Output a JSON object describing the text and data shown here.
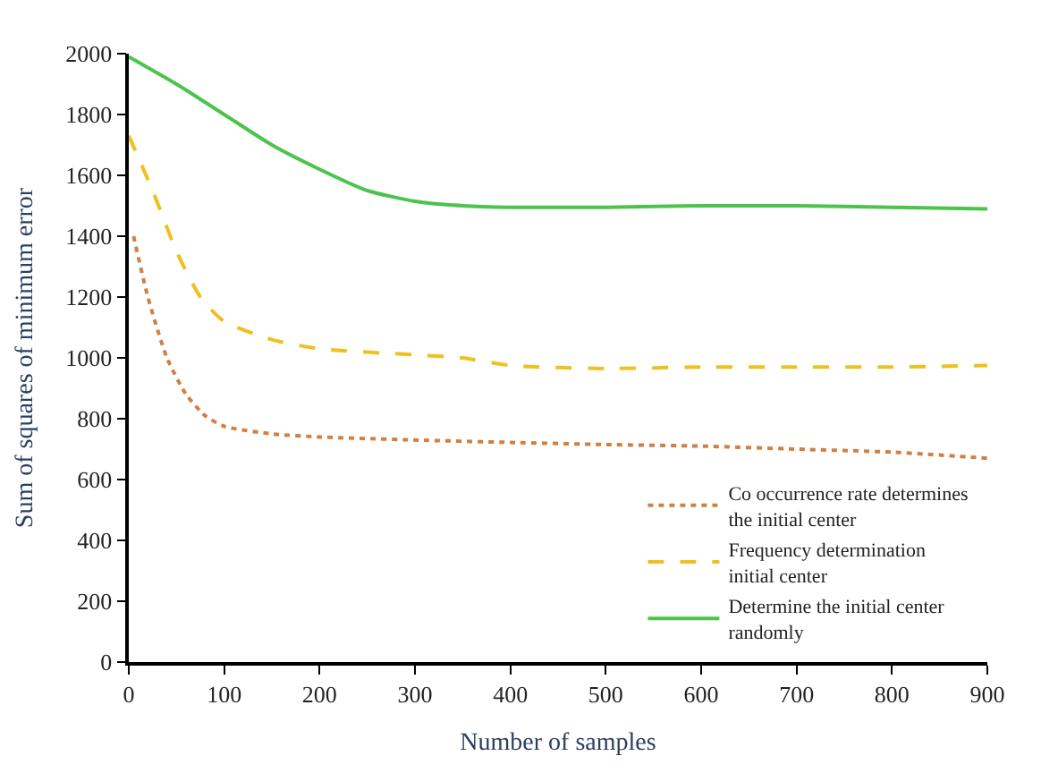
{
  "chart_data": {
    "type": "line",
    "xlabel": "Number of samples",
    "ylabel": "Sum of squares of minimum error",
    "xlim": [
      0,
      900
    ],
    "xticks": [
      0,
      100,
      200,
      300,
      400,
      500,
      600,
      700,
      800,
      900
    ],
    "ylim": [
      0,
      2000
    ],
    "yticks": [
      0,
      200,
      400,
      600,
      800,
      1000,
      1200,
      1400,
      1600,
      1800,
      2000
    ],
    "legend": "bottom right",
    "marker": "none",
    "series": [
      {
        "name": "Co occurrence rate determines the initial center",
        "color": "#d08040",
        "line_style": "dotted",
        "x": [
          5,
          20,
          40,
          60,
          80,
          100,
          150,
          200,
          300,
          400,
          500,
          600,
          700,
          800,
          900
        ],
        "values": [
          1400,
          1200,
          1000,
          880,
          810,
          775,
          750,
          740,
          730,
          722,
          715,
          710,
          700,
          690,
          670
        ]
      },
      {
        "name": "Frequency determination initial center",
        "color": "#f0c020",
        "line_style": "dashed",
        "x": [
          0,
          25,
          50,
          75,
          100,
          150,
          200,
          300,
          350,
          400,
          500,
          600,
          700,
          800,
          900
        ],
        "values": [
          1730,
          1550,
          1350,
          1200,
          1120,
          1060,
          1030,
          1010,
          1000,
          975,
          965,
          970,
          970,
          970,
          975
        ]
      },
      {
        "name": "Determine the initial center randomly",
        "color": "#4cc44c",
        "line_style": "solid",
        "x": [
          0,
          50,
          100,
          150,
          200,
          250,
          300,
          350,
          400,
          500,
          600,
          700,
          800,
          900
        ],
        "values": [
          1990,
          1900,
          1800,
          1700,
          1620,
          1550,
          1515,
          1500,
          1495,
          1495,
          1500,
          1500,
          1495,
          1490
        ]
      }
    ]
  }
}
